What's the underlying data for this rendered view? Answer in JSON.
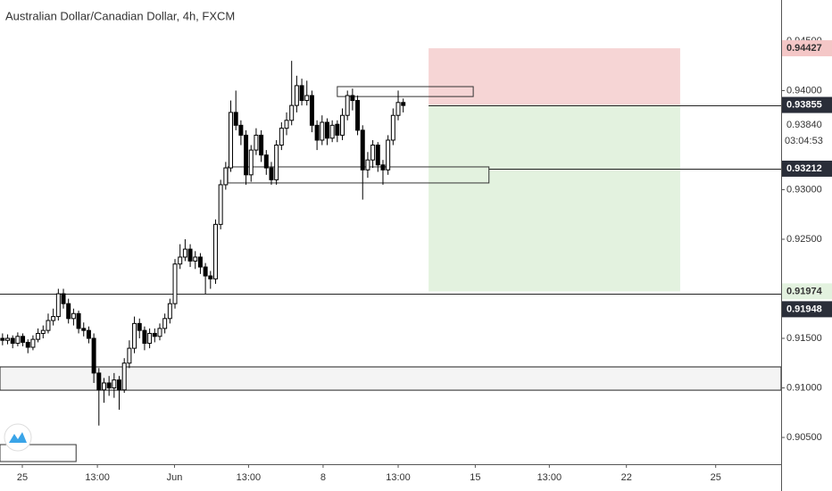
{
  "chart_data": {
    "type": "candlestick",
    "title": "Australian Dollar/Canadian Dollar, 4h, FXCM",
    "up_color": "#ffffff",
    "down_color": "#000000",
    "xlim": [
      0,
      154
    ],
    "ylim": [
      0.9023,
      0.94914
    ],
    "xticks": [
      {
        "value": 4.4,
        "label": "25"
      },
      {
        "value": 19.2,
        "label": "13:00"
      },
      {
        "value": 34.4,
        "label": "Jun"
      },
      {
        "value": 49,
        "label": "13:00"
      },
      {
        "value": 63.7,
        "label": "8"
      },
      {
        "value": 78.5,
        "label": "13:00"
      },
      {
        "value": 93.7,
        "label": "15"
      },
      {
        "value": 108.3,
        "label": "13:00"
      },
      {
        "value": 123.5,
        "label": "22"
      },
      {
        "value": 141.1,
        "label": "25"
      }
    ],
    "yticks": [
      {
        "value": 0.945,
        "label": "0.94500"
      },
      {
        "value": 0.94,
        "label": "0.94000"
      },
      {
        "value": 0.93,
        "label": "0.93000"
      },
      {
        "value": 0.925,
        "label": "0.92500"
      },
      {
        "value": 0.915,
        "label": "0.91500"
      },
      {
        "value": 0.91,
        "label": "0.91000"
      },
      {
        "value": 0.905,
        "label": "0.90500"
      }
    ],
    "candles": [
      [
        0.915,
        0.9155,
        0.9143,
        0.9148
      ],
      [
        0.9148,
        0.9154,
        0.9144,
        0.915
      ],
      [
        0.915,
        0.9153,
        0.914,
        0.9145
      ],
      [
        0.9145,
        0.9156,
        0.9142,
        0.9152
      ],
      [
        0.9152,
        0.9155,
        0.9142,
        0.9146
      ],
      [
        0.9146,
        0.9149,
        0.9135,
        0.9141
      ],
      [
        0.9141,
        0.9153,
        0.9138,
        0.9149
      ],
      [
        0.9149,
        0.916,
        0.9146,
        0.9155
      ],
      [
        0.9155,
        0.9163,
        0.915,
        0.9158
      ],
      [
        0.9158,
        0.9175,
        0.9155,
        0.9168
      ],
      [
        0.9168,
        0.918,
        0.9163,
        0.9172
      ],
      [
        0.9172,
        0.92,
        0.9168,
        0.9195
      ],
      [
        0.9195,
        0.92,
        0.918,
        0.9185
      ],
      [
        0.9185,
        0.919,
        0.9165,
        0.917
      ],
      [
        0.917,
        0.918,
        0.9163,
        0.9175
      ],
      [
        0.9175,
        0.9178,
        0.9155,
        0.916
      ],
      [
        0.916,
        0.9166,
        0.9152,
        0.9158
      ],
      [
        0.9158,
        0.9162,
        0.9145,
        0.915
      ],
      [
        0.915,
        0.9155,
        0.9105,
        0.9115
      ],
      [
        0.9115,
        0.912,
        0.9062,
        0.9098
      ],
      [
        0.9098,
        0.911,
        0.9085,
        0.9105
      ],
      [
        0.9105,
        0.9112,
        0.9092,
        0.91
      ],
      [
        0.91,
        0.9115,
        0.909,
        0.9108
      ],
      [
        0.9108,
        0.9112,
        0.9078,
        0.9098
      ],
      [
        0.9098,
        0.913,
        0.9095,
        0.9125
      ],
      [
        0.9125,
        0.9148,
        0.912,
        0.914
      ],
      [
        0.914,
        0.9172,
        0.9135,
        0.9165
      ],
      [
        0.9165,
        0.917,
        0.915,
        0.9158
      ],
      [
        0.9158,
        0.9162,
        0.9138,
        0.9145
      ],
      [
        0.9145,
        0.916,
        0.914,
        0.9155
      ],
      [
        0.9155,
        0.916,
        0.9146,
        0.9152
      ],
      [
        0.9152,
        0.9165,
        0.9148,
        0.916
      ],
      [
        0.916,
        0.9175,
        0.9155,
        0.917
      ],
      [
        0.917,
        0.919,
        0.9165,
        0.9185
      ],
      [
        0.9185,
        0.923,
        0.918,
        0.9225
      ],
      [
        0.9225,
        0.9245,
        0.922,
        0.9232
      ],
      [
        0.9232,
        0.925,
        0.9228,
        0.924
      ],
      [
        0.924,
        0.9245,
        0.9222,
        0.9228
      ],
      [
        0.9228,
        0.9238,
        0.922,
        0.9232
      ],
      [
        0.9232,
        0.9236,
        0.9215,
        0.9222
      ],
      [
        0.9222,
        0.9226,
        0.9195,
        0.9213
      ],
      [
        0.9213,
        0.9218,
        0.92,
        0.921
      ],
      [
        0.921,
        0.927,
        0.9205,
        0.9265
      ],
      [
        0.9265,
        0.931,
        0.926,
        0.9305
      ],
      [
        0.9305,
        0.9328,
        0.93,
        0.9322
      ],
      [
        0.9322,
        0.939,
        0.9318,
        0.9378
      ],
      [
        0.9378,
        0.94,
        0.936,
        0.9365
      ],
      [
        0.9365,
        0.937,
        0.9345,
        0.9355
      ],
      [
        0.9355,
        0.936,
        0.9305,
        0.9315
      ],
      [
        0.9315,
        0.9345,
        0.9308,
        0.934
      ],
      [
        0.934,
        0.9362,
        0.9335,
        0.9355
      ],
      [
        0.9355,
        0.936,
        0.9328,
        0.9335
      ],
      [
        0.9335,
        0.934,
        0.9315,
        0.9322
      ],
      [
        0.9322,
        0.9328,
        0.9305,
        0.931
      ],
      [
        0.931,
        0.935,
        0.9305,
        0.9345
      ],
      [
        0.9345,
        0.9368,
        0.934,
        0.9362
      ],
      [
        0.9362,
        0.9378,
        0.9355,
        0.937
      ],
      [
        0.937,
        0.943,
        0.9365,
        0.9385
      ],
      [
        0.9385,
        0.9415,
        0.9378,
        0.9405
      ],
      [
        0.9405,
        0.9412,
        0.9385,
        0.939
      ],
      [
        0.939,
        0.941,
        0.9385,
        0.9395
      ],
      [
        0.9395,
        0.94,
        0.9358,
        0.9365
      ],
      [
        0.9365,
        0.937,
        0.934,
        0.935
      ],
      [
        0.935,
        0.9375,
        0.9345,
        0.9368
      ],
      [
        0.9368,
        0.9372,
        0.9345,
        0.9352
      ],
      [
        0.9352,
        0.937,
        0.9348,
        0.9365
      ],
      [
        0.9366,
        0.937,
        0.9348,
        0.9355
      ],
      [
        0.9355,
        0.9382,
        0.935,
        0.9375
      ],
      [
        0.9375,
        0.94,
        0.937,
        0.9395
      ],
      [
        0.9395,
        0.9402,
        0.938,
        0.939
      ],
      [
        0.939,
        0.9395,
        0.9355,
        0.936
      ],
      [
        0.936,
        0.9365,
        0.929,
        0.932
      ],
      [
        0.932,
        0.9338,
        0.9312,
        0.933
      ],
      [
        0.933,
        0.935,
        0.9322,
        0.9345
      ],
      [
        0.9345,
        0.9348,
        0.9318,
        0.9325
      ],
      [
        0.9325,
        0.933,
        0.9305,
        0.932
      ],
      [
        0.932,
        0.9355,
        0.9315,
        0.935
      ],
      [
        0.935,
        0.9382,
        0.9345,
        0.9375
      ],
      [
        0.9375,
        0.94,
        0.937,
        0.9388
      ],
      [
        0.9388,
        0.9392,
        0.9378,
        0.9385
      ]
    ],
    "rectangles": [
      {
        "x": [
          84.5,
          134.1
        ],
        "y": [
          0.93855,
          0.94427
        ],
        "fill": "#f6d5d5",
        "stroke": "none"
      },
      {
        "x": [
          84.5,
          134.1
        ],
        "y": [
          0.91974,
          0.93855
        ],
        "fill": "#e3f2df",
        "stroke": "none"
      },
      {
        "x": [
          0,
          154
        ],
        "y": [
          0.90977,
          0.91212
        ],
        "fill": "#f4f4f4",
        "stroke": "#222222"
      },
      {
        "x": [
          44.9,
          96.4
        ],
        "y": [
          0.93068,
          0.9323
        ],
        "fill": "none",
        "stroke": "#333333"
      },
      {
        "x": [
          66.5,
          93.3
        ],
        "y": [
          0.9394,
          0.9404
        ],
        "fill": "none",
        "stroke": "#333333"
      },
      {
        "x": [
          0,
          15
        ],
        "y": [
          0.90257,
          0.90428
        ],
        "fill": "none",
        "stroke": "#333333"
      }
    ],
    "hlines": [
      {
        "value": 0.91948,
        "from": 0
      },
      {
        "value": 0.93855,
        "from": 84.5
      },
      {
        "value": 0.93212,
        "from": 96.4
      }
    ],
    "price_badges": [
      {
        "value": 0.94427,
        "color": "#f4c7c7",
        "text_color": "#333333"
      },
      {
        "value": 0.93855,
        "color": "#2a2e39",
        "text_color": "#ffffff"
      },
      {
        "value": 0.93212,
        "color": "#2a2e39",
        "text_color": "#ffffff"
      },
      {
        "value": 0.91974,
        "color": "#e3f2df",
        "text_color": "#333333"
      },
      {
        "value": 0.91948,
        "color": "#2a2e39",
        "text_color": "#ffffff"
      }
    ],
    "price_notes": [
      {
        "value": 0.9384,
        "label": "0.93840"
      }
    ],
    "countdown": "03:04:53"
  }
}
